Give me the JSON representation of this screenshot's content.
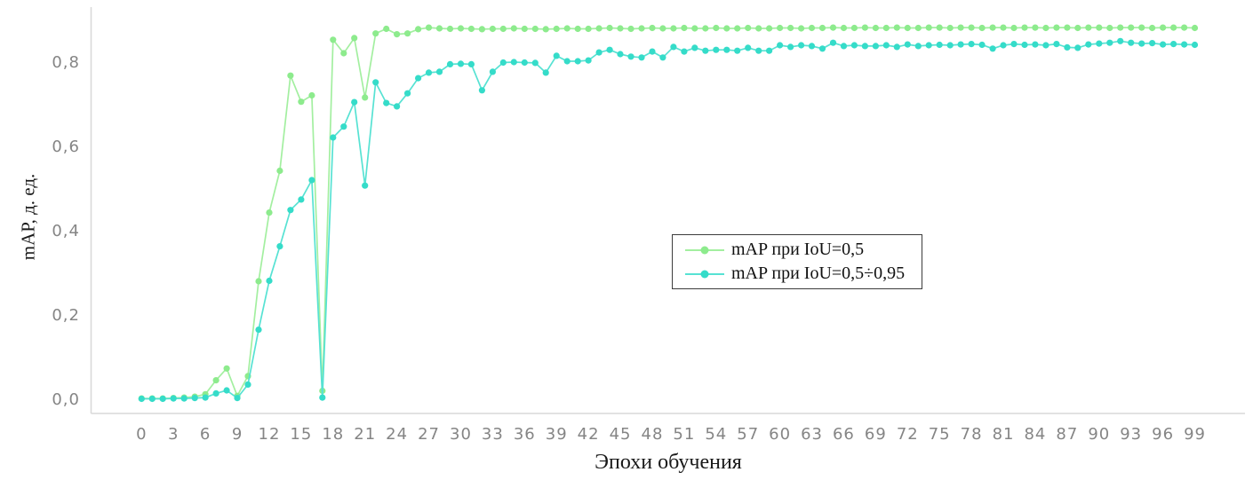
{
  "colors": {
    "series_map50": "#8deb8d",
    "series_map50_line": "#a3efa0",
    "series_map5095": "#35dcc9",
    "series_map5095_line": "#57e2d3",
    "axis": "#d9d9d9",
    "tick_text": "#858585",
    "legend_border": "#3c3c3c"
  },
  "chart_data": {
    "type": "line",
    "title": "",
    "xlabel": "Эпохи обучения",
    "ylabel": "mAP, д. ед.",
    "x_epochs": {
      "start": 0,
      "end": 99,
      "step": 1
    },
    "xtick_labels": [
      "0",
      "3",
      "6",
      "9",
      "12",
      "15",
      "18",
      "21",
      "24",
      "27",
      "30",
      "33",
      "36",
      "39",
      "42",
      "45",
      "48",
      "51",
      "54",
      "57",
      "60",
      "63",
      "66",
      "69",
      "72",
      "75",
      "78",
      "81",
      "84",
      "87",
      "90",
      "93",
      "96",
      "99"
    ],
    "yticks": [
      {
        "value": 0.0,
        "label": "0,0"
      },
      {
        "value": 0.2,
        "label": "0,2"
      },
      {
        "value": 0.4,
        "label": "0,4"
      },
      {
        "value": 0.6,
        "label": "0,6"
      },
      {
        "value": 0.8,
        "label": "0,8"
      }
    ],
    "ylim": [
      0,
      0.92
    ],
    "grid": false,
    "legend_position": "center-right-box",
    "series": [
      {
        "name": "mAP при IoU=0,5",
        "color": "#8deb8d",
        "line_color": "#a3efa0",
        "values": [
          0.002,
          0.002,
          0.002,
          0.003,
          0.004,
          0.006,
          0.012,
          0.045,
          0.073,
          0.008,
          0.055,
          0.28,
          0.443,
          0.542,
          0.768,
          0.706,
          0.721,
          0.02,
          0.853,
          0.821,
          0.857,
          0.716,
          0.868,
          0.879,
          0.866,
          0.868,
          0.878,
          0.882,
          0.88,
          0.879,
          0.88,
          0.879,
          0.878,
          0.879,
          0.879,
          0.88,
          0.879,
          0.879,
          0.878,
          0.879,
          0.88,
          0.879,
          0.879,
          0.88,
          0.881,
          0.88,
          0.879,
          0.88,
          0.881,
          0.88,
          0.88,
          0.881,
          0.88,
          0.88,
          0.881,
          0.88,
          0.88,
          0.881,
          0.88,
          0.88,
          0.881,
          0.881,
          0.88,
          0.881,
          0.881,
          0.882,
          0.881,
          0.881,
          0.882,
          0.881,
          0.881,
          0.882,
          0.881,
          0.881,
          0.882,
          0.882,
          0.881,
          0.882,
          0.882,
          0.881,
          0.882,
          0.882,
          0.881,
          0.882,
          0.882,
          0.881,
          0.882,
          0.882,
          0.881,
          0.882,
          0.882,
          0.881,
          0.882,
          0.882,
          0.882,
          0.881,
          0.882,
          0.882,
          0.882,
          0.881
        ]
      },
      {
        "name": "mAP при IoU=0,5÷0,95",
        "color": "#35dcc9",
        "line_color": "#57e2d3",
        "values": [
          0.001,
          0.001,
          0.001,
          0.002,
          0.002,
          0.003,
          0.004,
          0.014,
          0.021,
          0.003,
          0.035,
          0.165,
          0.281,
          0.363,
          0.449,
          0.474,
          0.52,
          0.004,
          0.621,
          0.647,
          0.705,
          0.507,
          0.752,
          0.703,
          0.695,
          0.726,
          0.762,
          0.775,
          0.777,
          0.795,
          0.796,
          0.795,
          0.733,
          0.777,
          0.799,
          0.8,
          0.799,
          0.798,
          0.775,
          0.815,
          0.802,
          0.802,
          0.804,
          0.823,
          0.829,
          0.819,
          0.813,
          0.811,
          0.825,
          0.811,
          0.836,
          0.825,
          0.834,
          0.827,
          0.829,
          0.829,
          0.827,
          0.834,
          0.827,
          0.827,
          0.84,
          0.836,
          0.84,
          0.838,
          0.832,
          0.846,
          0.838,
          0.84,
          0.838,
          0.838,
          0.84,
          0.836,
          0.842,
          0.838,
          0.84,
          0.841,
          0.84,
          0.842,
          0.843,
          0.841,
          0.832,
          0.84,
          0.843,
          0.841,
          0.842,
          0.84,
          0.843,
          0.835,
          0.834,
          0.842,
          0.844,
          0.846,
          0.85,
          0.846,
          0.844,
          0.845,
          0.842,
          0.843,
          0.842,
          0.841
        ]
      }
    ]
  },
  "legend": {
    "items": [
      {
        "label": "mAP при IoU=0,5"
      },
      {
        "label": "mAP при IoU=0,5÷0,95"
      }
    ]
  }
}
